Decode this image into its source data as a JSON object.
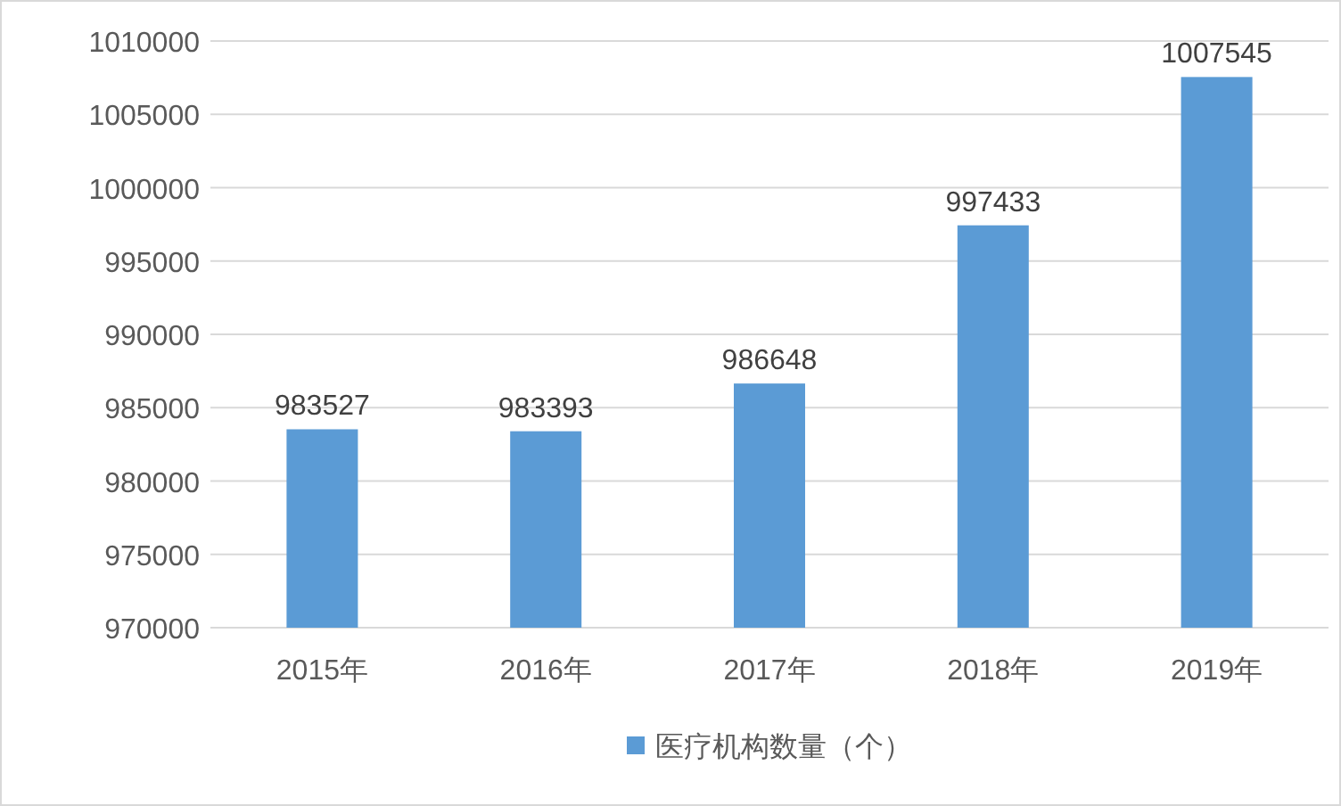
{
  "chart_data": {
    "type": "bar",
    "categories": [
      "2015年",
      "2016年",
      "2017年",
      "2018年",
      "2019年"
    ],
    "series": [
      {
        "name": "医疗机构数量（个）",
        "color": "#5b9bd5",
        "values": [
          983527,
          983393,
          986648,
          997433,
          1007545
        ]
      }
    ],
    "ylim": [
      970000,
      1010000
    ],
    "yticks": [
      970000,
      975000,
      980000,
      985000,
      990000,
      995000,
      1000000,
      1005000,
      1010000
    ],
    "grid": "y",
    "data_labels": true,
    "legend": "bottom"
  }
}
